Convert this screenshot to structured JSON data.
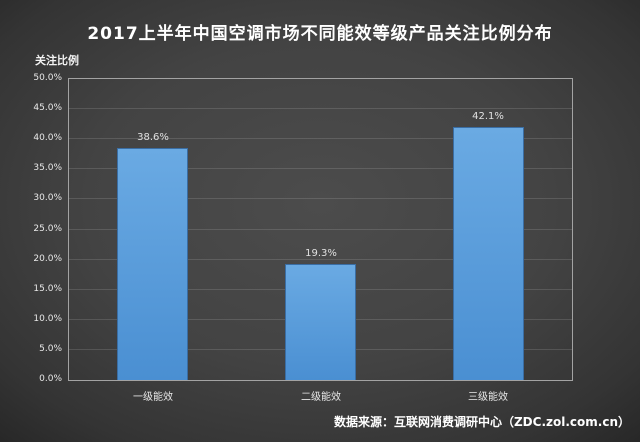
{
  "title": "2017上半年中国空调市场不同能效等级产品关注比例分布",
  "source": "数据来源：互联网消费调研中心（ZDC.zol.com.cn）",
  "chart_data": {
    "type": "bar",
    "title": "2017上半年中国空调市场不同能效等级产品关注比例分布",
    "y_axis_title": "关注比例",
    "categories": [
      "一级能效",
      "二级能效",
      "三级能效"
    ],
    "values": [
      38.6,
      19.3,
      42.1
    ],
    "data_labels": [
      "38.6%",
      "19.3%",
      "42.1%"
    ],
    "xlabel": "",
    "ylabel": "关注比例",
    "ylim": [
      0,
      50
    ],
    "y_tick_step": 5,
    "y_tick_labels": [
      "0.0%",
      "5.0%",
      "10.0%",
      "15.0%",
      "20.0%",
      "25.0%",
      "30.0%",
      "35.0%",
      "40.0%",
      "45.0%",
      "50.0%"
    ],
    "grid": true,
    "legend": "none",
    "source_note": "数据来源：互联网消费调研中心（ZDC.zol.com.cn）",
    "colors": {
      "background_center": "#4c4c4c",
      "background_edge": "#202020",
      "bar_fill_top": "#6aaae3",
      "bar_fill_bottom": "#4a8fd2",
      "bar_border": "#3a6da3",
      "plot_border": "#a3a3a3",
      "gridline": "rgba(255,255,255,0.13)",
      "title_text": "#ffffff",
      "axis_text": "#e8e8e8"
    }
  }
}
